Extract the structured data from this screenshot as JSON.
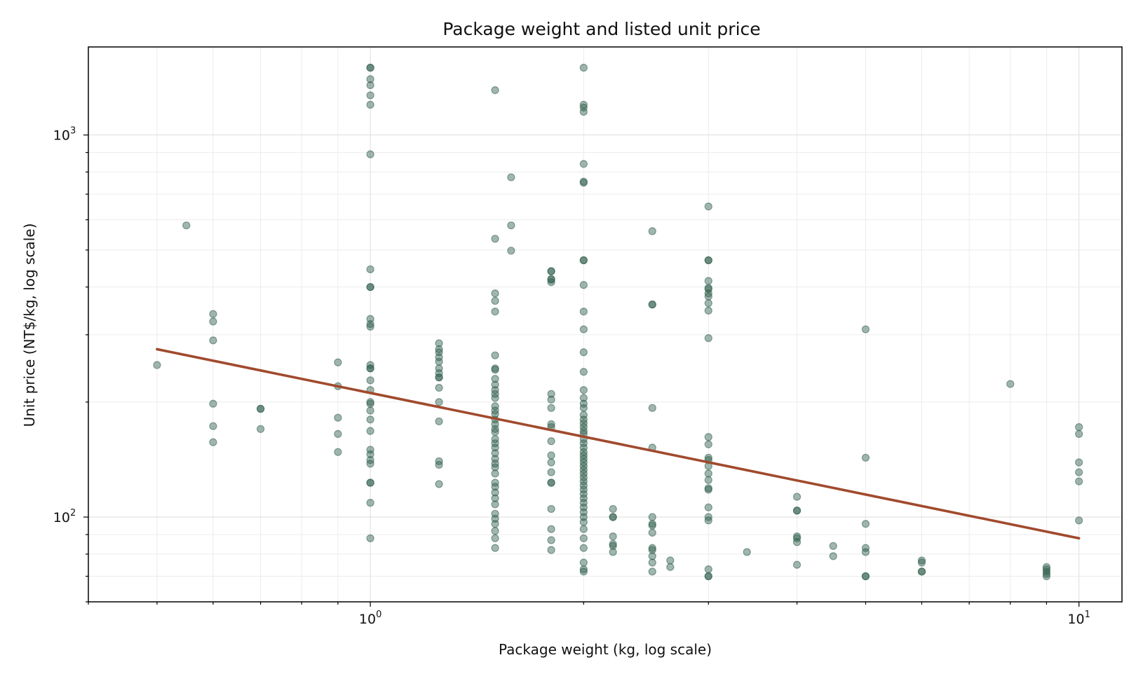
{
  "chart_data": {
    "type": "scatter",
    "title": "Package weight and listed unit price",
    "xlabel": "Package weight (kg, log scale)",
    "ylabel": "Unit price (NT$/kg, log scale)",
    "xscale": "log",
    "yscale": "log",
    "xlim": [
      0.4,
      11.5
    ],
    "ylim": [
      60,
      1700
    ],
    "x_ticks": [
      {
        "base": "10",
        "exp": "0",
        "value": 1
      },
      {
        "base": "10",
        "exp": "1",
        "value": 10
      }
    ],
    "y_ticks": [
      {
        "base": "10",
        "exp": "2",
        "value": 100
      },
      {
        "base": "10",
        "exp": "3",
        "value": 1000
      }
    ],
    "grid": true,
    "colors": {
      "points": "#2f5e4b",
      "trend": "#a14a2d"
    },
    "series": [
      {
        "kind": "points",
        "points": [
          [
            0.5,
            250
          ],
          [
            0.55,
            580
          ],
          [
            0.6,
            340
          ],
          [
            0.6,
            325
          ],
          [
            0.6,
            290
          ],
          [
            0.6,
            198
          ],
          [
            0.6,
            173
          ],
          [
            0.6,
            157
          ],
          [
            0.7,
            192
          ],
          [
            0.7,
            192
          ],
          [
            0.7,
            170
          ],
          [
            0.9,
            254
          ],
          [
            0.9,
            220
          ],
          [
            0.9,
            182
          ],
          [
            0.9,
            165
          ],
          [
            0.9,
            148
          ],
          [
            1.0,
            1500
          ],
          [
            1.0,
            1500
          ],
          [
            1.0,
            1400
          ],
          [
            1.0,
            1350
          ],
          [
            1.0,
            1270
          ],
          [
            1.0,
            1200
          ],
          [
            1.0,
            890
          ],
          [
            1.0,
            445
          ],
          [
            1.0,
            400
          ],
          [
            1.0,
            400
          ],
          [
            1.0,
            330
          ],
          [
            1.0,
            320
          ],
          [
            1.0,
            315
          ],
          [
            1.0,
            250
          ],
          [
            1.0,
            245
          ],
          [
            1.0,
            245
          ],
          [
            1.0,
            228
          ],
          [
            1.0,
            215
          ],
          [
            1.0,
            200
          ],
          [
            1.0,
            198
          ],
          [
            1.0,
            190
          ],
          [
            1.0,
            180
          ],
          [
            1.0,
            168
          ],
          [
            1.0,
            150
          ],
          [
            1.0,
            146
          ],
          [
            1.0,
            141
          ],
          [
            1.0,
            138
          ],
          [
            1.0,
            123
          ],
          [
            1.0,
            123
          ],
          [
            1.0,
            109
          ],
          [
            1.0,
            88
          ],
          [
            1.25,
            285
          ],
          [
            1.25,
            275
          ],
          [
            1.25,
            270
          ],
          [
            1.25,
            262
          ],
          [
            1.25,
            255
          ],
          [
            1.25,
            245
          ],
          [
            1.25,
            238
          ],
          [
            1.25,
            232
          ],
          [
            1.25,
            232
          ],
          [
            1.25,
            218
          ],
          [
            1.25,
            200
          ],
          [
            1.25,
            178
          ],
          [
            1.25,
            140
          ],
          [
            1.25,
            137
          ],
          [
            1.25,
            122
          ],
          [
            1.5,
            1310
          ],
          [
            1.5,
            535
          ],
          [
            1.5,
            385
          ],
          [
            1.5,
            368
          ],
          [
            1.5,
            345
          ],
          [
            1.5,
            265
          ],
          [
            1.5,
            245
          ],
          [
            1.5,
            243
          ],
          [
            1.5,
            230
          ],
          [
            1.5,
            222
          ],
          [
            1.5,
            215
          ],
          [
            1.5,
            210
          ],
          [
            1.5,
            205
          ],
          [
            1.5,
            195
          ],
          [
            1.5,
            190
          ],
          [
            1.5,
            186
          ],
          [
            1.5,
            180
          ],
          [
            1.5,
            175
          ],
          [
            1.5,
            170
          ],
          [
            1.5,
            167
          ],
          [
            1.5,
            160
          ],
          [
            1.5,
            156
          ],
          [
            1.5,
            152
          ],
          [
            1.5,
            147
          ],
          [
            1.5,
            142
          ],
          [
            1.5,
            138
          ],
          [
            1.5,
            135
          ],
          [
            1.5,
            130
          ],
          [
            1.5,
            123
          ],
          [
            1.5,
            120
          ],
          [
            1.5,
            116
          ],
          [
            1.5,
            112
          ],
          [
            1.5,
            108
          ],
          [
            1.5,
            102
          ],
          [
            1.5,
            99
          ],
          [
            1.5,
            96
          ],
          [
            1.5,
            92
          ],
          [
            1.5,
            88
          ],
          [
            1.5,
            83
          ],
          [
            1.58,
            775
          ],
          [
            1.58,
            580
          ],
          [
            1.58,
            498
          ],
          [
            1.8,
            440
          ],
          [
            1.8,
            440
          ],
          [
            1.8,
            420
          ],
          [
            1.8,
            418
          ],
          [
            1.8,
            412
          ],
          [
            1.8,
            210
          ],
          [
            1.8,
            203
          ],
          [
            1.8,
            193
          ],
          [
            1.8,
            175
          ],
          [
            1.8,
            172
          ],
          [
            1.8,
            158
          ],
          [
            1.8,
            145
          ],
          [
            1.8,
            139
          ],
          [
            1.8,
            131
          ],
          [
            1.8,
            123
          ],
          [
            1.8,
            123
          ],
          [
            1.8,
            105
          ],
          [
            1.8,
            93
          ],
          [
            1.8,
            87
          ],
          [
            1.8,
            82
          ],
          [
            2.0,
            1500
          ],
          [
            2.0,
            1200
          ],
          [
            2.0,
            1180
          ],
          [
            2.0,
            1150
          ],
          [
            2.0,
            840
          ],
          [
            2.0,
            755
          ],
          [
            2.0,
            750
          ],
          [
            2.0,
            470
          ],
          [
            2.0,
            470
          ],
          [
            2.0,
            405
          ],
          [
            2.0,
            345
          ],
          [
            2.0,
            310
          ],
          [
            2.0,
            270
          ],
          [
            2.0,
            240
          ],
          [
            2.0,
            215
          ],
          [
            2.0,
            205
          ],
          [
            2.0,
            198
          ],
          [
            2.0,
            193
          ],
          [
            2.0,
            185
          ],
          [
            2.0,
            180
          ],
          [
            2.0,
            176
          ],
          [
            2.0,
            172
          ],
          [
            2.0,
            168
          ],
          [
            2.0,
            165
          ],
          [
            2.0,
            160
          ],
          [
            2.0,
            156
          ],
          [
            2.0,
            152
          ],
          [
            2.0,
            148
          ],
          [
            2.0,
            145
          ],
          [
            2.0,
            142
          ],
          [
            2.0,
            139
          ],
          [
            2.0,
            136
          ],
          [
            2.0,
            133
          ],
          [
            2.0,
            130
          ],
          [
            2.0,
            127
          ],
          [
            2.0,
            124
          ],
          [
            2.0,
            121
          ],
          [
            2.0,
            118
          ],
          [
            2.0,
            115
          ],
          [
            2.0,
            112
          ],
          [
            2.0,
            109
          ],
          [
            2.0,
            106
          ],
          [
            2.0,
            103
          ],
          [
            2.0,
            100
          ],
          [
            2.0,
            97
          ],
          [
            2.0,
            93
          ],
          [
            2.0,
            88
          ],
          [
            2.0,
            83
          ],
          [
            2.0,
            76
          ],
          [
            2.0,
            73
          ],
          [
            2.0,
            72
          ],
          [
            2.2,
            105
          ],
          [
            2.2,
            100
          ],
          [
            2.2,
            100
          ],
          [
            2.2,
            89
          ],
          [
            2.2,
            85
          ],
          [
            2.2,
            84
          ],
          [
            2.2,
            81
          ],
          [
            2.5,
            560
          ],
          [
            2.5,
            360
          ],
          [
            2.5,
            360
          ],
          [
            2.5,
            193
          ],
          [
            2.5,
            152
          ],
          [
            2.5,
            100
          ],
          [
            2.5,
            96
          ],
          [
            2.5,
            95
          ],
          [
            2.5,
            91
          ],
          [
            2.5,
            83
          ],
          [
            2.5,
            82
          ],
          [
            2.5,
            79
          ],
          [
            2.5,
            76
          ],
          [
            2.5,
            72
          ],
          [
            2.65,
            77
          ],
          [
            2.65,
            74
          ],
          [
            3.0,
            650
          ],
          [
            3.0,
            470
          ],
          [
            3.0,
            470
          ],
          [
            3.0,
            415
          ],
          [
            3.0,
            398
          ],
          [
            3.0,
            395
          ],
          [
            3.0,
            385
          ],
          [
            3.0,
            378
          ],
          [
            3.0,
            363
          ],
          [
            3.0,
            347
          ],
          [
            3.0,
            294
          ],
          [
            3.0,
            162
          ],
          [
            3.0,
            155
          ],
          [
            3.0,
            143
          ],
          [
            3.0,
            141
          ],
          [
            3.0,
            136
          ],
          [
            3.0,
            130
          ],
          [
            3.0,
            125
          ],
          [
            3.0,
            119
          ],
          [
            3.0,
            118
          ],
          [
            3.0,
            106
          ],
          [
            3.0,
            100
          ],
          [
            3.0,
            98
          ],
          [
            3.0,
            73
          ],
          [
            3.0,
            70
          ],
          [
            3.0,
            70
          ],
          [
            3.4,
            81
          ],
          [
            4.0,
            113
          ],
          [
            4.0,
            104
          ],
          [
            4.0,
            104
          ],
          [
            4.0,
            89
          ],
          [
            4.0,
            88
          ],
          [
            4.0,
            86
          ],
          [
            4.0,
            75
          ],
          [
            4.5,
            84
          ],
          [
            4.5,
            79
          ],
          [
            5.0,
            310
          ],
          [
            5.0,
            143
          ],
          [
            5.0,
            96
          ],
          [
            5.0,
            83
          ],
          [
            5.0,
            81
          ],
          [
            5.0,
            70
          ],
          [
            5.0,
            70
          ],
          [
            6.0,
            77
          ],
          [
            6.0,
            76
          ],
          [
            6.0,
            72
          ],
          [
            6.0,
            72
          ],
          [
            8.0,
            223
          ],
          [
            9.0,
            74
          ],
          [
            9.0,
            73
          ],
          [
            9.0,
            72
          ],
          [
            9.0,
            71
          ],
          [
            9.0,
            70
          ],
          [
            10.0,
            172
          ],
          [
            10.0,
            165
          ],
          [
            10.0,
            139
          ],
          [
            10.0,
            131
          ],
          [
            10.0,
            124
          ],
          [
            10.0,
            98
          ]
        ]
      },
      {
        "kind": "trend",
        "points": [
          [
            0.5,
            275
          ],
          [
            10.0,
            88
          ]
        ]
      }
    ]
  }
}
